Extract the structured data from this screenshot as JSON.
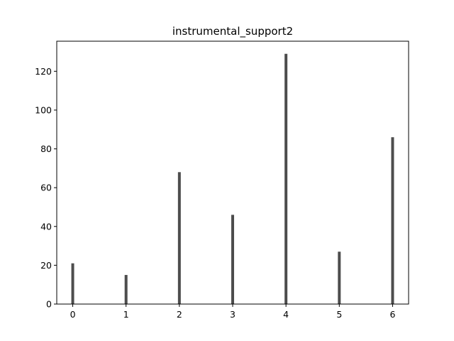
{
  "chart_data": {
    "type": "bar",
    "title": "instrumental_support2",
    "xlabel": "",
    "ylabel": "",
    "x": [
      0,
      1,
      2,
      3,
      4,
      5,
      6
    ],
    "values": [
      21,
      15,
      68,
      46,
      129,
      27,
      86
    ],
    "xlim": [
      -0.3,
      6.3
    ],
    "ylim": [
      0,
      135.5
    ],
    "xticks": [
      0,
      1,
      2,
      3,
      4,
      5,
      6
    ],
    "yticks": [
      0,
      20,
      40,
      60,
      80,
      100,
      120
    ],
    "bar_color": "#4d4d4d",
    "grid": false
  }
}
